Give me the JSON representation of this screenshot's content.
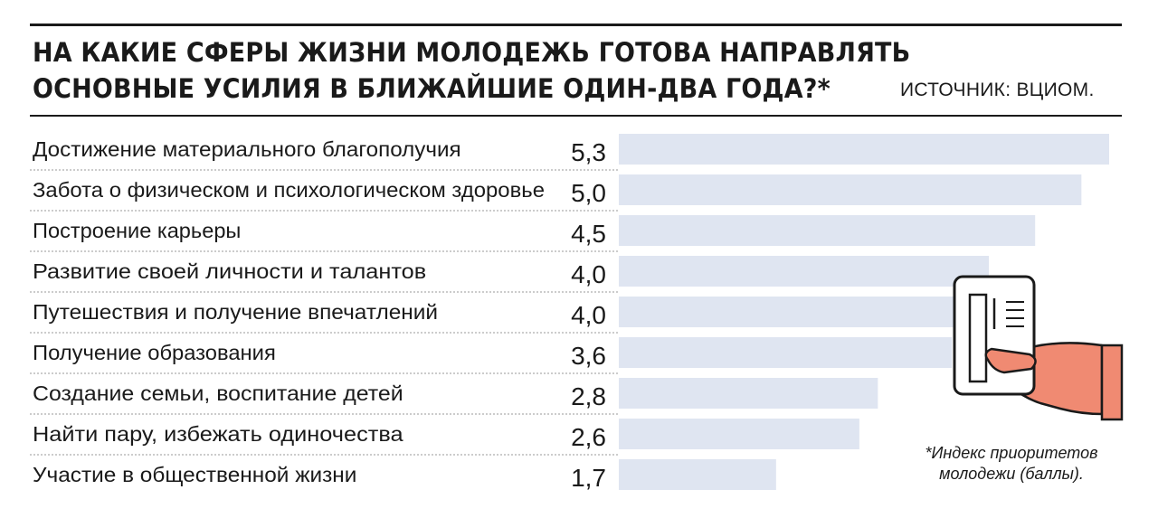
{
  "header": {
    "title_line1": "НА КАКИЕ СФЕРЫ ЖИЗНИ МОЛОДЕЖЬ ГОТОВА НАПРАВЛЯТЬ",
    "title_line2": "ОСНОВНЫЕ УСИЛИЯ В БЛИЖАЙШИЕ ОДИН-ДВА ГОДА?*",
    "source": "ИСТОЧНИК: ВЦИОМ."
  },
  "footnote": {
    "line1": "*Индекс приоритетов",
    "line2": "молодежи (баллы)."
  },
  "colors": {
    "bar": "#dfe5f1",
    "hand": "#f08a72",
    "ink": "#1a1a1a"
  },
  "illustration": {
    "icon": "hand-holding-card-icon"
  },
  "chart_data": {
    "type": "bar",
    "orientation": "horizontal",
    "categories": [
      "Достижение материального благополучия",
      "Забота о физическом и психологическом здоровье",
      "Построение карьеры",
      "Развитие своей личности и талантов",
      "Путешествия и получение впечатлений",
      "Получение образования",
      "Создание семьи, воспитание детей",
      "Найти пару, избежать одиночества",
      "Участие в общественной жизни"
    ],
    "values": [
      5.3,
      5.0,
      4.5,
      4.0,
      4.0,
      3.6,
      2.8,
      2.6,
      1.7
    ],
    "value_labels": [
      "5,3",
      "5,0",
      "4,5",
      "4,0",
      "4,0",
      "3,6",
      "2,8",
      "2,6",
      "1,7"
    ],
    "xlim": [
      0,
      5.3
    ],
    "grid": false,
    "legend": "none"
  }
}
